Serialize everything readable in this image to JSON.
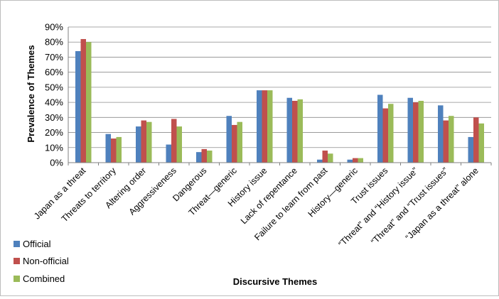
{
  "chart_data": {
    "type": "bar",
    "title": "",
    "xlabel": "Discursive Themes",
    "ylabel": "Prevalence of Themes",
    "ylim": [
      0,
      90
    ],
    "yticks": [
      0,
      10,
      20,
      30,
      40,
      50,
      60,
      70,
      80,
      90
    ],
    "ytick_labels": [
      "0%",
      "10%",
      "20%",
      "30%",
      "40%",
      "50%",
      "60%",
      "70%",
      "80%",
      "90%"
    ],
    "categories": [
      "Japan as a threat",
      "Threats to territory",
      "Altering order",
      "Aggressiveness",
      "Dangerous",
      "Threat—generic",
      "History issue",
      "Lack of repentance",
      "Failure to learn from past",
      "History—generic",
      "Trust issues",
      "“Threat” and “History issue”",
      "“Threat” and “Trust issues”",
      "“Japan as a threat” alone"
    ],
    "series": [
      {
        "name": "Official",
        "color": "#4f81bd",
        "values": [
          74,
          19,
          24,
          12,
          7,
          31,
          48,
          43,
          2,
          2,
          45,
          43,
          38,
          17
        ]
      },
      {
        "name": "Non-official",
        "color": "#c0504d",
        "values": [
          82,
          16,
          28,
          29,
          9,
          25,
          48,
          41,
          8,
          3,
          36,
          40,
          28,
          30
        ]
      },
      {
        "name": "Combined",
        "color": "#9bbb59",
        "values": [
          80,
          17,
          27,
          24,
          8,
          27,
          48,
          42,
          6,
          3,
          39,
          41,
          31,
          26
        ]
      }
    ],
    "grid": true,
    "legend_position": "bottom-left"
  }
}
